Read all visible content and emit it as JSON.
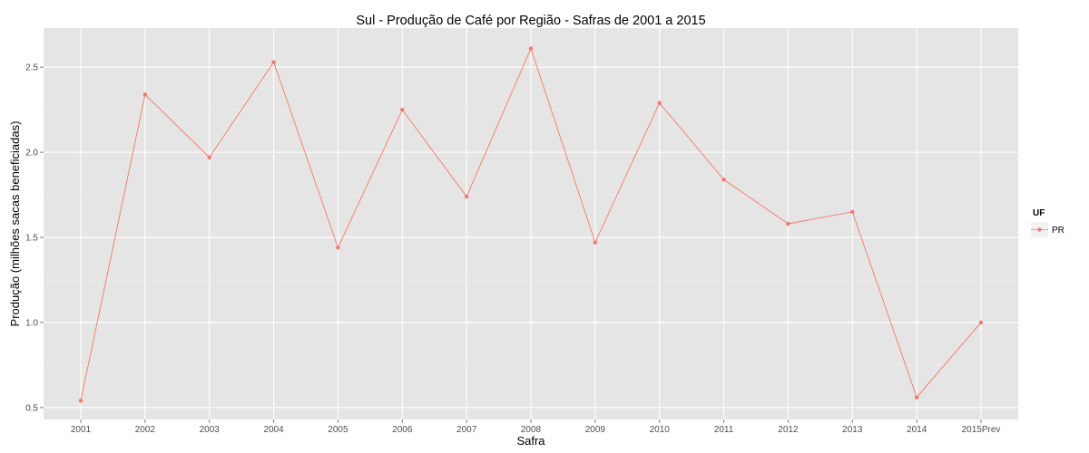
{
  "chart_data": {
    "type": "line",
    "title": "Sul  - Produção de Café por Região - Safras de 2001 a 2015",
    "xlabel": "Safra",
    "ylabel": "Produção (milhões sacas beneficiadas)",
    "categories": [
      "2001",
      "2002",
      "2003",
      "2004",
      "2005",
      "2006",
      "2007",
      "2008",
      "2009",
      "2010",
      "2011",
      "2012",
      "2013",
      "2014",
      "2015Prev"
    ],
    "series": [
      {
        "name": "PR",
        "color": "#F8766D",
        "values": [
          0.54,
          2.34,
          1.97,
          2.53,
          1.44,
          2.25,
          1.74,
          2.61,
          1.47,
          2.29,
          1.84,
          1.58,
          1.65,
          0.56,
          1.0
        ]
      }
    ],
    "ylim": [
      0.43,
      2.73
    ],
    "yticks": [
      0.5,
      1.0,
      1.5,
      2.0,
      2.5
    ],
    "ytick_labels": [
      "0.5",
      "1.0",
      "1.5",
      "2.0",
      "2.5"
    ],
    "grid": true,
    "legend": {
      "title": "UF",
      "position": "right"
    },
    "colors": {
      "panel_background": "#E5E5E5",
      "grid_major": "#FFFFFF",
      "grid_minor": "#F2F2F2"
    }
  }
}
